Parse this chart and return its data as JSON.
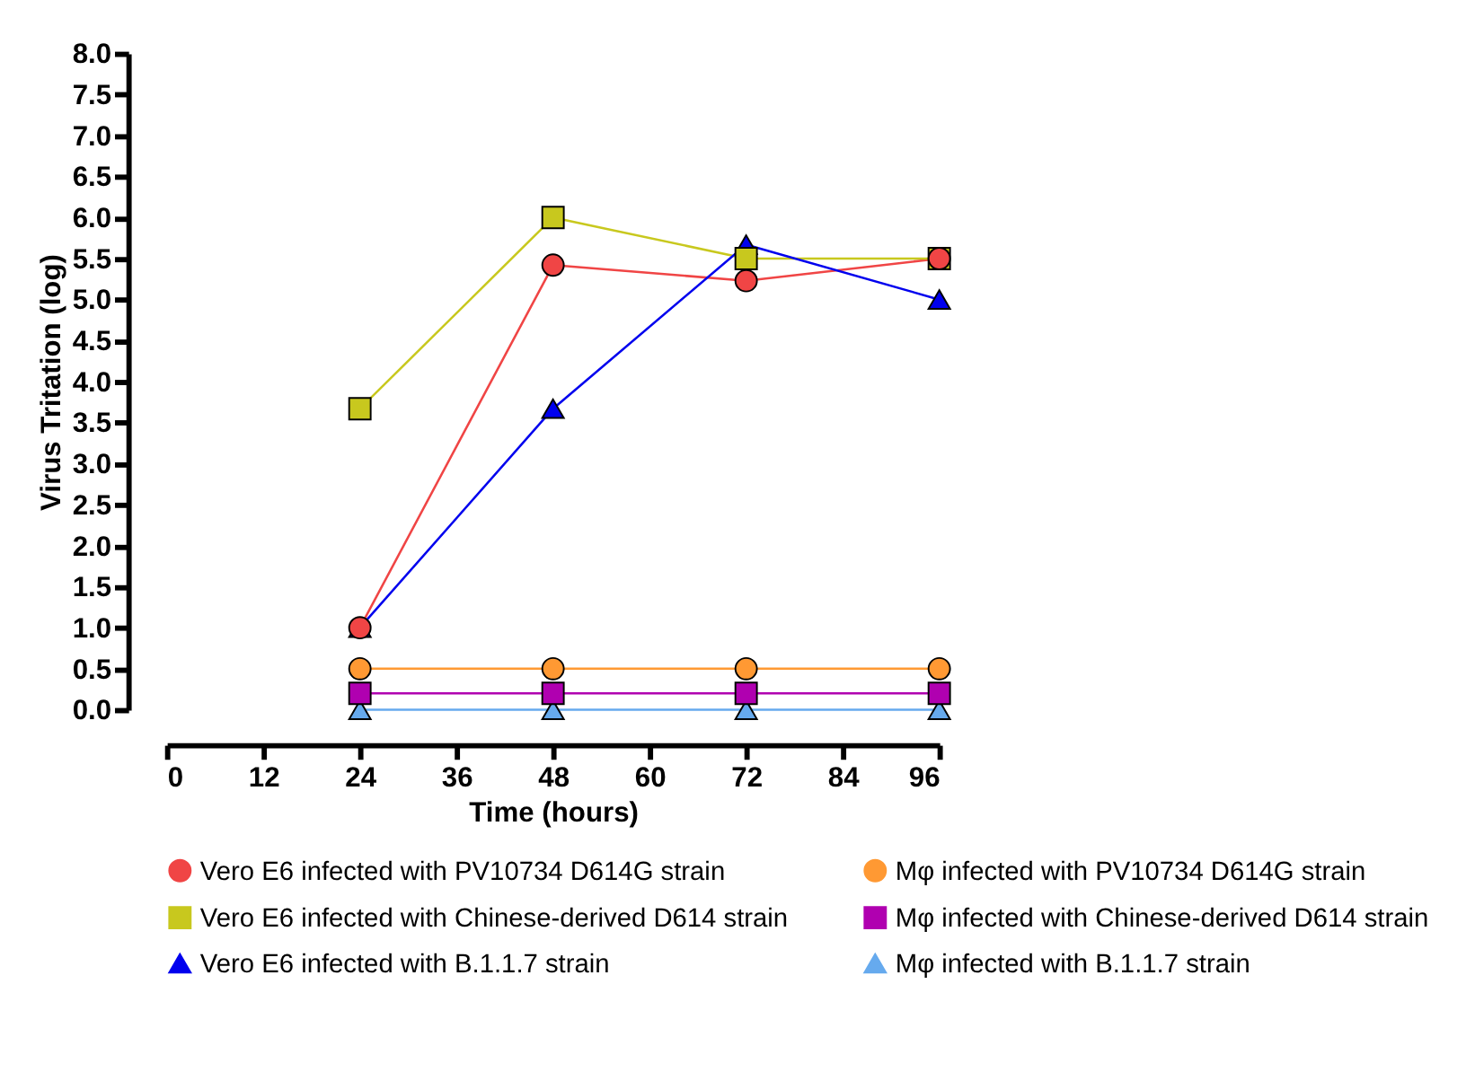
{
  "chart_data": {
    "type": "line",
    "xlabel": "Time (hours)",
    "ylabel": "Virus Tritation (log)",
    "x": [
      24,
      48,
      72,
      96
    ],
    "xlim": [
      0,
      96
    ],
    "xticks": [
      0,
      12,
      24,
      36,
      48,
      60,
      72,
      84,
      96
    ],
    "ylim": [
      0,
      8
    ],
    "yticks": [
      {
        "value": 0,
        "label": "0.0"
      },
      {
        "value": 0.5,
        "label": "0.5"
      },
      {
        "value": 1,
        "label": "1.0"
      },
      {
        "value": 1.5,
        "label": "1.5"
      },
      {
        "value": 2,
        "label": "2.0"
      },
      {
        "value": 2.5,
        "label": "2.5"
      },
      {
        "value": 3,
        "label": "3.0"
      },
      {
        "value": 3.5,
        "label": "3.5"
      },
      {
        "value": 4,
        "label": "4.0"
      },
      {
        "value": 4.5,
        "label": "4.5"
      },
      {
        "value": 5,
        "label": "5.0"
      },
      {
        "value": 5.5,
        "label": "5.5"
      },
      {
        "value": 6,
        "label": "6.0"
      },
      {
        "value": 6.5,
        "label": "6.5"
      },
      {
        "value": 7,
        "label": "7.0"
      },
      {
        "value": 7.5,
        "label": "7.5"
      },
      {
        "value": 8,
        "label": "8.0"
      }
    ],
    "grid": false,
    "legend": "bottom",
    "line_style": "solid",
    "series": [
      {
        "name": "Vero E6 infected with PV10734 D614G strain",
        "color": "#f04545",
        "marker": "circle",
        "values": [
          1.0,
          5.42,
          5.23,
          5.5
        ]
      },
      {
        "name": "Vero E6 infected with Chinese-derived D614 strain",
        "color": "#c8c81e",
        "marker": "square",
        "values": [
          3.67,
          6.0,
          5.5,
          5.5
        ]
      },
      {
        "name": "Vero E6 infected with B.1.1.7 strain",
        "color": "#0000ee",
        "marker": "triangle",
        "values": [
          1.0,
          3.67,
          5.67,
          5.0
        ]
      },
      {
        "name": "Mφ infected with PV10734 D614G strain",
        "color": "#ff9933",
        "marker": "circle",
        "values": [
          0.5,
          0.5,
          0.5,
          0.5
        ]
      },
      {
        "name": "Mφ infected with Chinese-derived D614 strain",
        "color": "#b000b0",
        "marker": "square",
        "values": [
          0.2,
          0.2,
          0.2,
          0.2
        ]
      },
      {
        "name": "Mφ infected with B.1.1.7 strain",
        "color": "#66aaee",
        "marker": "triangle",
        "values": [
          0,
          0,
          0,
          0
        ]
      }
    ]
  }
}
